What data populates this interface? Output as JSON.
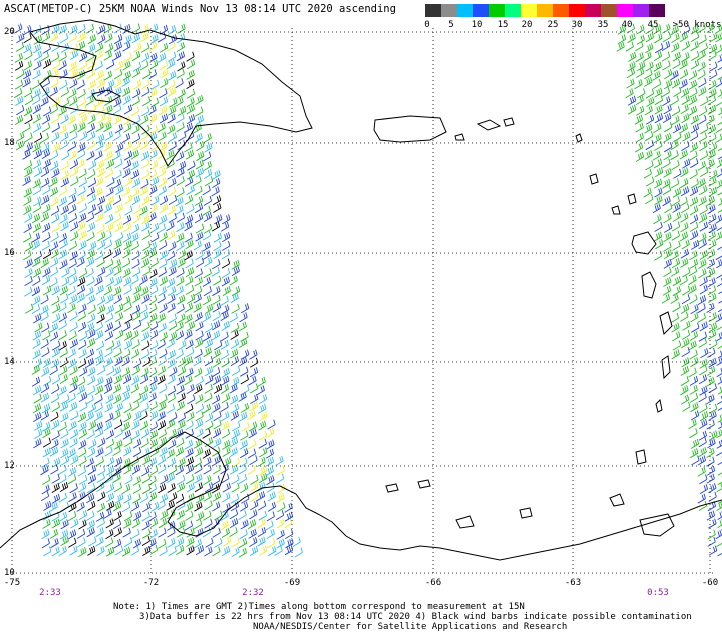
{
  "title": "ASCAT(METOP-C) 25KM NOAA Winds Nov 13 08:14 UTC 2020 ascending",
  "colorbar": {
    "segments": [
      "#333333",
      "#8c8c8c",
      "#00bfff",
      "#1e50ff",
      "#00cc00",
      "#00ff7f",
      "#ffff33",
      "#ffb800",
      "#ff5a00",
      "#ff0000",
      "#c8005a",
      "#a0522d",
      "#ff00ff",
      "#a020f0",
      "#5a005a"
    ],
    "labels": [
      "0",
      "5",
      "10",
      "15",
      "20",
      "25",
      "30",
      "35",
      "40",
      "45",
      ">50 knots"
    ]
  },
  "lat_labels": [
    "20",
    "18",
    "16",
    "14",
    "12",
    "10"
  ],
  "lon_labels": [
    "-75",
    "-72",
    "-69",
    "-66",
    "-63",
    "-60"
  ],
  "time_labels": [
    "2:33",
    "2:32",
    "0:53"
  ],
  "notes": [
    "Note: 1) Times are GMT 2)Times along bottom correspond to measurement at 15N",
    "3)Data buffer is 22 hrs from Nov 13 08:14 UTC 2020 4) Black wind barbs indicate possible contamination",
    "NOAA/NESDIS/Center for Satellite Applications and Research"
  ],
  "barb_colors": {
    "black": "#000000",
    "cyan": "#33bbee",
    "blue": "#2244dd",
    "green": "#22bb22",
    "yellow": "#eeee22"
  }
}
